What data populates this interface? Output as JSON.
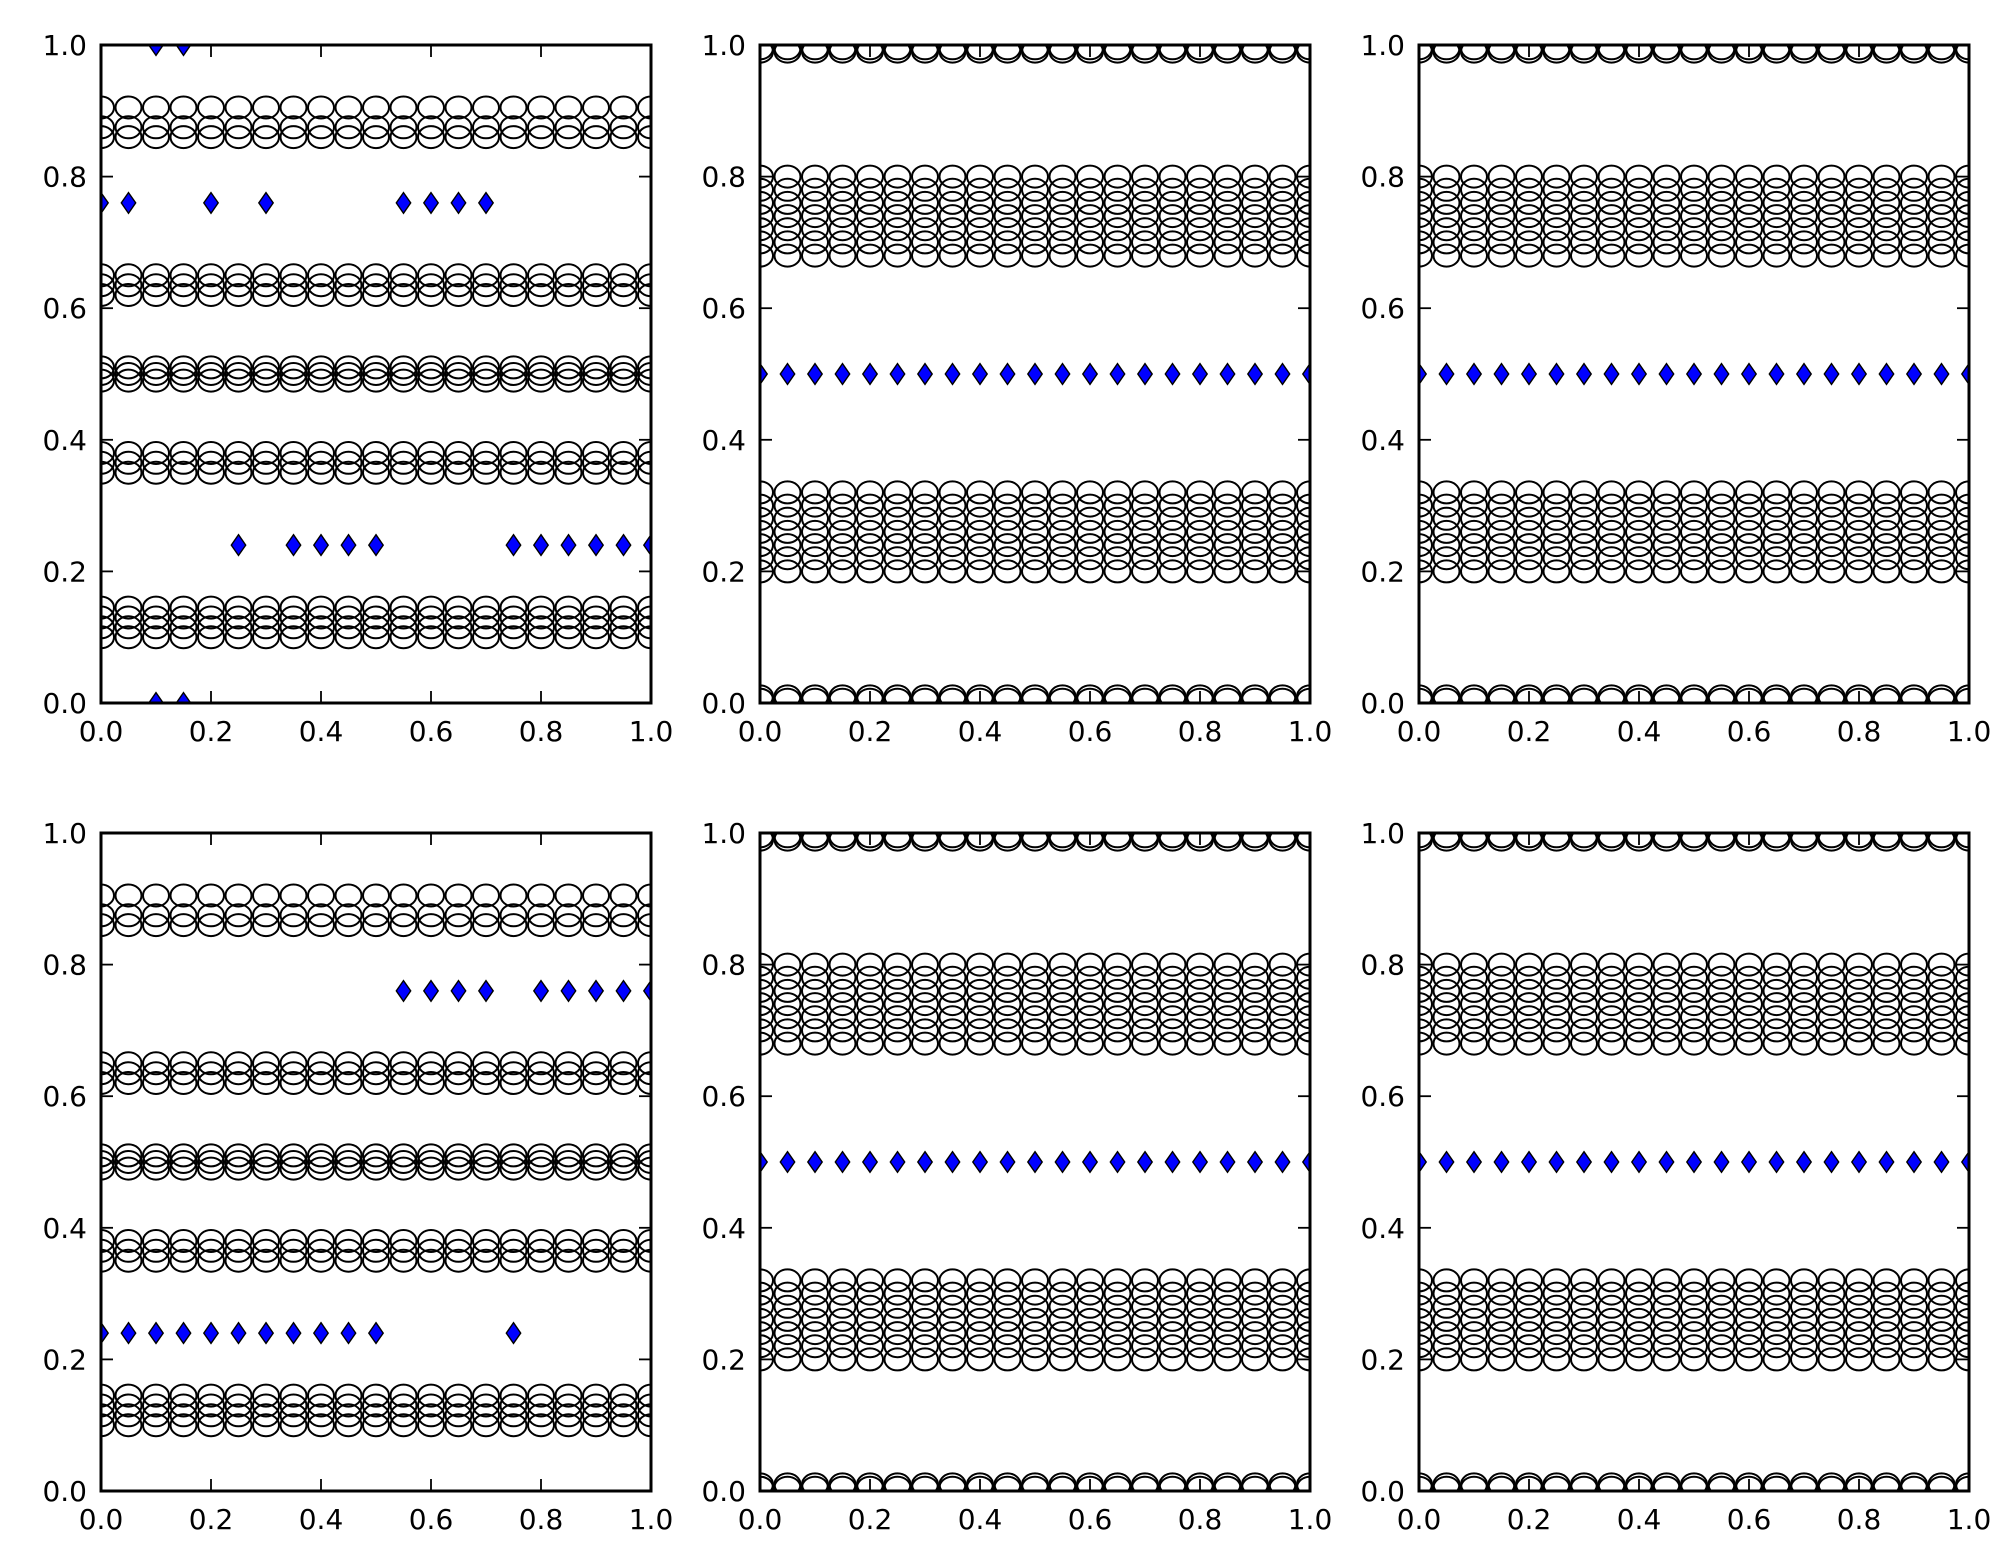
{
  "colors": {
    "circles": "#000000",
    "diamonds": "#0000ff"
  },
  "chart_data": [
    {
      "type": "scatter",
      "xlim": [
        0,
        1
      ],
      "ylim": [
        0,
        1
      ],
      "xticks": [
        "0.0",
        "0.2",
        "0.4",
        "0.6",
        "0.8",
        "1.0"
      ],
      "yticks": [
        "0.0",
        "0.2",
        "0.4",
        "0.6",
        "0.8",
        "1.0"
      ],
      "grid": false,
      "circle_x": [
        0,
        0.05,
        0.1,
        0.15,
        0.2,
        0.25,
        0.3,
        0.35,
        0.4,
        0.45,
        0.5,
        0.55,
        0.6,
        0.65,
        0.7,
        0.75,
        0.8,
        0.85,
        0.9,
        0.95,
        1
      ],
      "circle_y": [
        0.1,
        0.115,
        0.13,
        0.145,
        0.35,
        0.365,
        0.38,
        0.49,
        0.5,
        0.51,
        0.62,
        0.635,
        0.65,
        0.86,
        0.875,
        0.905
      ],
      "diamonds": [
        {
          "x": 0.1,
          "y": 1.0
        },
        {
          "x": 0.15,
          "y": 1.0
        },
        {
          "x": 0,
          "y": 0.76
        },
        {
          "x": 0.05,
          "y": 0.76
        },
        {
          "x": 0.2,
          "y": 0.76
        },
        {
          "x": 0.3,
          "y": 0.76
        },
        {
          "x": 0.55,
          "y": 0.76
        },
        {
          "x": 0.6,
          "y": 0.76
        },
        {
          "x": 0.65,
          "y": 0.76
        },
        {
          "x": 0.7,
          "y": 0.76
        },
        {
          "x": 0.25,
          "y": 0.24
        },
        {
          "x": 0.35,
          "y": 0.24
        },
        {
          "x": 0.4,
          "y": 0.24
        },
        {
          "x": 0.45,
          "y": 0.24
        },
        {
          "x": 0.5,
          "y": 0.24
        },
        {
          "x": 0.75,
          "y": 0.24
        },
        {
          "x": 0.8,
          "y": 0.24
        },
        {
          "x": 0.85,
          "y": 0.24
        },
        {
          "x": 0.9,
          "y": 0.24
        },
        {
          "x": 0.95,
          "y": 0.24
        },
        {
          "x": 1.0,
          "y": 0.24
        },
        {
          "x": 0.1,
          "y": 0.0
        },
        {
          "x": 0.15,
          "y": 0.0
        }
      ]
    },
    {
      "type": "scatter",
      "xlim": [
        0,
        1
      ],
      "ylim": [
        0,
        1
      ],
      "xticks": [
        "0.0",
        "0.2",
        "0.4",
        "0.6",
        "0.8",
        "1.0"
      ],
      "yticks": [
        "0.0",
        "0.2",
        "0.4",
        "0.6",
        "0.8",
        "1.0"
      ],
      "grid": false,
      "circle_x": [
        0,
        0.05,
        0.1,
        0.15,
        0.2,
        0.25,
        0.3,
        0.35,
        0.4,
        0.45,
        0.5,
        0.55,
        0.6,
        0.65,
        0.7,
        0.75,
        0.8,
        0.85,
        0.9,
        0.95,
        1
      ],
      "circle_y": [
        0.005,
        0.01,
        0.2,
        0.22,
        0.24,
        0.26,
        0.28,
        0.3,
        0.32,
        0.68,
        0.7,
        0.72,
        0.74,
        0.76,
        0.78,
        0.8,
        0.99,
        0.995
      ],
      "diamonds": [
        {
          "x": 0,
          "y": 0.5
        },
        {
          "x": 0.05,
          "y": 0.5
        },
        {
          "x": 0.1,
          "y": 0.5
        },
        {
          "x": 0.15,
          "y": 0.5
        },
        {
          "x": 0.2,
          "y": 0.5
        },
        {
          "x": 0.25,
          "y": 0.5
        },
        {
          "x": 0.3,
          "y": 0.5
        },
        {
          "x": 0.35,
          "y": 0.5
        },
        {
          "x": 0.4,
          "y": 0.5
        },
        {
          "x": 0.45,
          "y": 0.5
        },
        {
          "x": 0.5,
          "y": 0.5
        },
        {
          "x": 0.55,
          "y": 0.5
        },
        {
          "x": 0.6,
          "y": 0.5
        },
        {
          "x": 0.65,
          "y": 0.5
        },
        {
          "x": 0.7,
          "y": 0.5
        },
        {
          "x": 0.75,
          "y": 0.5
        },
        {
          "x": 0.8,
          "y": 0.5
        },
        {
          "x": 0.85,
          "y": 0.5
        },
        {
          "x": 0.9,
          "y": 0.5
        },
        {
          "x": 0.95,
          "y": 0.5
        },
        {
          "x": 1.0,
          "y": 0.5
        }
      ]
    },
    {
      "type": "scatter",
      "xlim": [
        0,
        1
      ],
      "ylim": [
        0,
        1
      ],
      "xticks": [
        "0.0",
        "0.2",
        "0.4",
        "0.6",
        "0.8",
        "1.0"
      ],
      "yticks": [
        "0.0",
        "0.2",
        "0.4",
        "0.6",
        "0.8",
        "1.0"
      ],
      "grid": false,
      "circle_x": [
        0,
        0.05,
        0.1,
        0.15,
        0.2,
        0.25,
        0.3,
        0.35,
        0.4,
        0.45,
        0.5,
        0.55,
        0.6,
        0.65,
        0.7,
        0.75,
        0.8,
        0.85,
        0.9,
        0.95,
        1
      ],
      "circle_y": [
        0.005,
        0.01,
        0.2,
        0.22,
        0.24,
        0.26,
        0.28,
        0.3,
        0.32,
        0.68,
        0.7,
        0.72,
        0.74,
        0.76,
        0.78,
        0.8,
        0.99,
        0.995
      ],
      "diamonds": [
        {
          "x": 0,
          "y": 0.5
        },
        {
          "x": 0.05,
          "y": 0.5
        },
        {
          "x": 0.1,
          "y": 0.5
        },
        {
          "x": 0.15,
          "y": 0.5
        },
        {
          "x": 0.2,
          "y": 0.5
        },
        {
          "x": 0.25,
          "y": 0.5
        },
        {
          "x": 0.3,
          "y": 0.5
        },
        {
          "x": 0.35,
          "y": 0.5
        },
        {
          "x": 0.4,
          "y": 0.5
        },
        {
          "x": 0.45,
          "y": 0.5
        },
        {
          "x": 0.5,
          "y": 0.5
        },
        {
          "x": 0.55,
          "y": 0.5
        },
        {
          "x": 0.6,
          "y": 0.5
        },
        {
          "x": 0.65,
          "y": 0.5
        },
        {
          "x": 0.7,
          "y": 0.5
        },
        {
          "x": 0.75,
          "y": 0.5
        },
        {
          "x": 0.8,
          "y": 0.5
        },
        {
          "x": 0.85,
          "y": 0.5
        },
        {
          "x": 0.9,
          "y": 0.5
        },
        {
          "x": 0.95,
          "y": 0.5
        },
        {
          "x": 1.0,
          "y": 0.5
        }
      ]
    },
    {
      "type": "scatter",
      "xlim": [
        0,
        1
      ],
      "ylim": [
        0,
        1
      ],
      "xticks": [
        "0.0",
        "0.2",
        "0.4",
        "0.6",
        "0.8",
        "1.0"
      ],
      "yticks": [
        "0.0",
        "0.2",
        "0.4",
        "0.6",
        "0.8",
        "1.0"
      ],
      "grid": false,
      "circle_x": [
        0,
        0.05,
        0.1,
        0.15,
        0.2,
        0.25,
        0.3,
        0.35,
        0.4,
        0.45,
        0.5,
        0.55,
        0.6,
        0.65,
        0.7,
        0.75,
        0.8,
        0.85,
        0.9,
        0.95,
        1
      ],
      "circle_y": [
        0.1,
        0.115,
        0.13,
        0.145,
        0.35,
        0.365,
        0.38,
        0.49,
        0.5,
        0.51,
        0.62,
        0.635,
        0.65,
        0.86,
        0.875,
        0.905
      ],
      "diamonds": [
        {
          "x": 0.55,
          "y": 0.76
        },
        {
          "x": 0.6,
          "y": 0.76
        },
        {
          "x": 0.65,
          "y": 0.76
        },
        {
          "x": 0.7,
          "y": 0.76
        },
        {
          "x": 0.8,
          "y": 0.76
        },
        {
          "x": 0.85,
          "y": 0.76
        },
        {
          "x": 0.9,
          "y": 0.76
        },
        {
          "x": 0.95,
          "y": 0.76
        },
        {
          "x": 1.0,
          "y": 0.76
        },
        {
          "x": 0,
          "y": 0.24
        },
        {
          "x": 0.05,
          "y": 0.24
        },
        {
          "x": 0.1,
          "y": 0.24
        },
        {
          "x": 0.15,
          "y": 0.24
        },
        {
          "x": 0.2,
          "y": 0.24
        },
        {
          "x": 0.25,
          "y": 0.24
        },
        {
          "x": 0.3,
          "y": 0.24
        },
        {
          "x": 0.35,
          "y": 0.24
        },
        {
          "x": 0.4,
          "y": 0.24
        },
        {
          "x": 0.45,
          "y": 0.24
        },
        {
          "x": 0.5,
          "y": 0.24
        },
        {
          "x": 0.75,
          "y": 0.24
        }
      ]
    },
    {
      "type": "scatter",
      "xlim": [
        0,
        1
      ],
      "ylim": [
        0,
        1
      ],
      "xticks": [
        "0.0",
        "0.2",
        "0.4",
        "0.6",
        "0.8",
        "1.0"
      ],
      "yticks": [
        "0.0",
        "0.2",
        "0.4",
        "0.6",
        "0.8",
        "1.0"
      ],
      "grid": false,
      "circle_x": [
        0,
        0.05,
        0.1,
        0.15,
        0.2,
        0.25,
        0.3,
        0.35,
        0.4,
        0.45,
        0.5,
        0.55,
        0.6,
        0.65,
        0.7,
        0.75,
        0.8,
        0.85,
        0.9,
        0.95,
        1
      ],
      "circle_y": [
        0.005,
        0.01,
        0.2,
        0.22,
        0.24,
        0.26,
        0.28,
        0.3,
        0.32,
        0.68,
        0.7,
        0.72,
        0.74,
        0.76,
        0.78,
        0.8,
        0.99,
        0.995
      ],
      "diamonds": [
        {
          "x": 0,
          "y": 0.5
        },
        {
          "x": 0.05,
          "y": 0.5
        },
        {
          "x": 0.1,
          "y": 0.5
        },
        {
          "x": 0.15,
          "y": 0.5
        },
        {
          "x": 0.2,
          "y": 0.5
        },
        {
          "x": 0.25,
          "y": 0.5
        },
        {
          "x": 0.3,
          "y": 0.5
        },
        {
          "x": 0.35,
          "y": 0.5
        },
        {
          "x": 0.4,
          "y": 0.5
        },
        {
          "x": 0.45,
          "y": 0.5
        },
        {
          "x": 0.5,
          "y": 0.5
        },
        {
          "x": 0.55,
          "y": 0.5
        },
        {
          "x": 0.6,
          "y": 0.5
        },
        {
          "x": 0.65,
          "y": 0.5
        },
        {
          "x": 0.7,
          "y": 0.5
        },
        {
          "x": 0.75,
          "y": 0.5
        },
        {
          "x": 0.8,
          "y": 0.5
        },
        {
          "x": 0.85,
          "y": 0.5
        },
        {
          "x": 0.9,
          "y": 0.5
        },
        {
          "x": 0.95,
          "y": 0.5
        },
        {
          "x": 1.0,
          "y": 0.5
        }
      ]
    },
    {
      "type": "scatter",
      "xlim": [
        0,
        1
      ],
      "ylim": [
        0,
        1
      ],
      "xticks": [
        "0.0",
        "0.2",
        "0.4",
        "0.6",
        "0.8",
        "1.0"
      ],
      "yticks": [
        "0.0",
        "0.2",
        "0.4",
        "0.6",
        "0.8",
        "1.0"
      ],
      "grid": false,
      "circle_x": [
        0,
        0.05,
        0.1,
        0.15,
        0.2,
        0.25,
        0.3,
        0.35,
        0.4,
        0.45,
        0.5,
        0.55,
        0.6,
        0.65,
        0.7,
        0.75,
        0.8,
        0.85,
        0.9,
        0.95,
        1
      ],
      "circle_y": [
        0.005,
        0.01,
        0.2,
        0.22,
        0.24,
        0.26,
        0.28,
        0.3,
        0.32,
        0.68,
        0.7,
        0.72,
        0.74,
        0.76,
        0.78,
        0.8,
        0.99,
        0.995
      ],
      "diamonds": [
        {
          "x": 0,
          "y": 0.5
        },
        {
          "x": 0.05,
          "y": 0.5
        },
        {
          "x": 0.1,
          "y": 0.5
        },
        {
          "x": 0.15,
          "y": 0.5
        },
        {
          "x": 0.2,
          "y": 0.5
        },
        {
          "x": 0.25,
          "y": 0.5
        },
        {
          "x": 0.3,
          "y": 0.5
        },
        {
          "x": 0.35,
          "y": 0.5
        },
        {
          "x": 0.4,
          "y": 0.5
        },
        {
          "x": 0.45,
          "y": 0.5
        },
        {
          "x": 0.5,
          "y": 0.5
        },
        {
          "x": 0.55,
          "y": 0.5
        },
        {
          "x": 0.6,
          "y": 0.5
        },
        {
          "x": 0.65,
          "y": 0.5
        },
        {
          "x": 0.7,
          "y": 0.5
        },
        {
          "x": 0.75,
          "y": 0.5
        },
        {
          "x": 0.8,
          "y": 0.5
        },
        {
          "x": 0.85,
          "y": 0.5
        },
        {
          "x": 0.9,
          "y": 0.5
        },
        {
          "x": 0.95,
          "y": 0.5
        },
        {
          "x": 1.0,
          "y": 0.5
        }
      ]
    }
  ]
}
